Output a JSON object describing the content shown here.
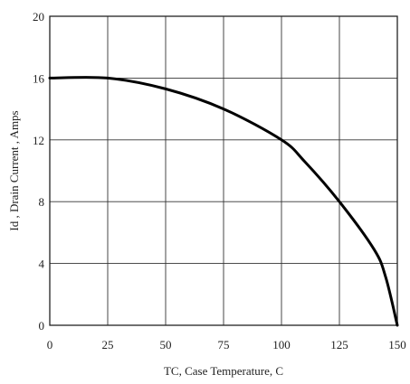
{
  "chart_data": {
    "type": "line",
    "title": "",
    "xlabel": "TC, Case Temperature, C",
    "ylabel": "Id , Drain Current , Amps",
    "xlim": [
      0,
      150
    ],
    "ylim": [
      0,
      20
    ],
    "xticks": [
      0,
      25,
      50,
      75,
      100,
      125,
      150
    ],
    "yticks": [
      0,
      4,
      8,
      12,
      16,
      20
    ],
    "grid": true,
    "series": [
      {
        "x": [
          0,
          25,
          50,
          75,
          100,
          110,
          125,
          140,
          145,
          150
        ],
        "y": [
          16,
          16,
          15.3,
          14,
          12,
          10.6,
          8,
          4.9,
          3.1,
          0
        ]
      }
    ]
  }
}
